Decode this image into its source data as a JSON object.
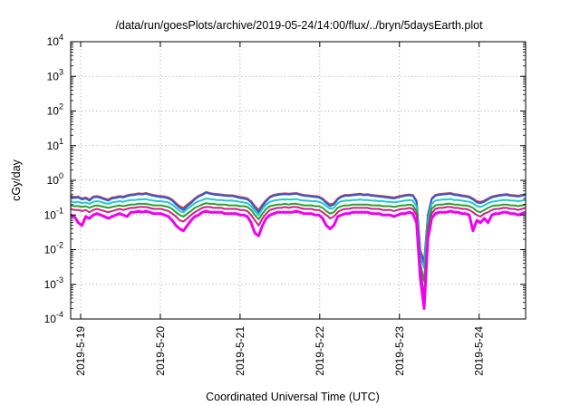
{
  "chart_data": {
    "type": "line",
    "title": "/data/run/goesPlots/archive/2019-05-24/14:00/flux/../bryn/5daysEarth.plot",
    "xlabel": "Coordinated Universal Time (UTC)",
    "ylabel": "cGy/day",
    "yscale": "log",
    "ylim": [
      0.0001,
      10000
    ],
    "xlim": [
      "2019-05-18 21:00",
      "2019-05-24 14:00"
    ],
    "grid": true,
    "x_ticks": [
      "2019-5-19",
      "2019-5-20",
      "2019-5-21",
      "2019-5-22",
      "2019-5-23",
      "2019-5-24"
    ],
    "y_ticks": [
      {
        "value": 0.0001,
        "base": "10",
        "exp": "-4"
      },
      {
        "value": 0.001,
        "base": "10",
        "exp": "-3"
      },
      {
        "value": 0.01,
        "base": "10",
        "exp": "-2"
      },
      {
        "value": 0.1,
        "base": "10",
        "exp": "-1"
      },
      {
        "value": 1,
        "base": "10",
        "exp": "0"
      },
      {
        "value": 10,
        "base": "10",
        "exp": "1"
      },
      {
        "value": 100,
        "base": "10",
        "exp": "2"
      },
      {
        "value": 1000,
        "base": "10",
        "exp": "3"
      },
      {
        "value": 10000,
        "base": "10",
        "exp": "4"
      }
    ],
    "series": [
      {
        "color": "#e8322f",
        "values": [
          0.36,
          0.33,
          0.34,
          0.3,
          0.32,
          0.28,
          0.34,
          0.35,
          0.33,
          0.3,
          0.28,
          0.32,
          0.33,
          0.35,
          0.34,
          0.37,
          0.39,
          0.4,
          0.42,
          0.41,
          0.43,
          0.4,
          0.38,
          0.36,
          0.35,
          0.34,
          0.32,
          0.28,
          0.22,
          0.18,
          0.16,
          0.2,
          0.24,
          0.3,
          0.36,
          0.4,
          0.46,
          0.43,
          0.41,
          0.4,
          0.39,
          0.38,
          0.37,
          0.37,
          0.35,
          0.33,
          0.32,
          0.3,
          0.25,
          0.18,
          0.14,
          0.2,
          0.27,
          0.34,
          0.38,
          0.4,
          0.41,
          0.42,
          0.41,
          0.42,
          0.43,
          0.4,
          0.38,
          0.37,
          0.36,
          0.35,
          0.34,
          0.3,
          0.24,
          0.2,
          0.22,
          0.3,
          0.35,
          0.38,
          0.38,
          0.39,
          0.4,
          0.41,
          0.39,
          0.4,
          0.38,
          0.37,
          0.36,
          0.35,
          0.34,
          0.33,
          0.32,
          0.34,
          0.36,
          0.38,
          0.39,
          0.38,
          0.26,
          0.01,
          0.0045,
          0.1,
          0.3,
          0.38,
          0.4,
          0.41,
          0.42,
          0.43,
          0.4,
          0.39,
          0.37,
          0.36,
          0.34,
          0.3,
          0.25,
          0.24,
          0.26,
          0.3,
          0.34,
          0.36,
          0.38,
          0.39,
          0.4,
          0.38,
          0.37,
          0.36,
          0.38,
          0.4
        ]
      },
      {
        "color": "#2060e0",
        "values": [
          0.34,
          0.31,
          0.32,
          0.28,
          0.3,
          0.26,
          0.32,
          0.33,
          0.31,
          0.28,
          0.26,
          0.3,
          0.31,
          0.33,
          0.32,
          0.35,
          0.37,
          0.38,
          0.4,
          0.39,
          0.41,
          0.38,
          0.36,
          0.34,
          0.33,
          0.32,
          0.3,
          0.26,
          0.2,
          0.16,
          0.14,
          0.18,
          0.22,
          0.28,
          0.34,
          0.38,
          0.44,
          0.41,
          0.39,
          0.38,
          0.37,
          0.36,
          0.35,
          0.35,
          0.33,
          0.31,
          0.3,
          0.28,
          0.23,
          0.16,
          0.12,
          0.18,
          0.25,
          0.32,
          0.36,
          0.38,
          0.39,
          0.4,
          0.39,
          0.4,
          0.41,
          0.38,
          0.36,
          0.35,
          0.34,
          0.33,
          0.32,
          0.28,
          0.22,
          0.18,
          0.2,
          0.28,
          0.33,
          0.36,
          0.36,
          0.37,
          0.38,
          0.39,
          0.37,
          0.38,
          0.36,
          0.35,
          0.34,
          0.33,
          0.32,
          0.31,
          0.3,
          0.32,
          0.34,
          0.36,
          0.37,
          0.36,
          0.24,
          0.009,
          0.004,
          0.09,
          0.28,
          0.36,
          0.38,
          0.39,
          0.4,
          0.41,
          0.38,
          0.37,
          0.35,
          0.34,
          0.32,
          0.28,
          0.23,
          0.22,
          0.24,
          0.28,
          0.32,
          0.34,
          0.36,
          0.37,
          0.38,
          0.36,
          0.35,
          0.34,
          0.36,
          0.38
        ]
      },
      {
        "color": "#1fc8c8",
        "values": [
          0.25,
          0.23,
          0.24,
          0.22,
          0.23,
          0.21,
          0.24,
          0.25,
          0.24,
          0.22,
          0.21,
          0.23,
          0.24,
          0.25,
          0.24,
          0.26,
          0.27,
          0.27,
          0.28,
          0.28,
          0.29,
          0.27,
          0.26,
          0.25,
          0.25,
          0.24,
          0.23,
          0.2,
          0.16,
          0.13,
          0.12,
          0.15,
          0.18,
          0.22,
          0.25,
          0.27,
          0.3,
          0.29,
          0.28,
          0.27,
          0.27,
          0.26,
          0.26,
          0.26,
          0.25,
          0.24,
          0.23,
          0.22,
          0.18,
          0.13,
          0.1,
          0.15,
          0.2,
          0.24,
          0.26,
          0.27,
          0.28,
          0.28,
          0.28,
          0.28,
          0.29,
          0.27,
          0.26,
          0.26,
          0.25,
          0.25,
          0.24,
          0.22,
          0.18,
          0.15,
          0.16,
          0.22,
          0.25,
          0.26,
          0.26,
          0.27,
          0.27,
          0.28,
          0.27,
          0.27,
          0.26,
          0.26,
          0.25,
          0.25,
          0.24,
          0.24,
          0.23,
          0.24,
          0.25,
          0.26,
          0.27,
          0.26,
          0.18,
          0.006,
          0.003,
          0.07,
          0.21,
          0.26,
          0.27,
          0.28,
          0.28,
          0.29,
          0.27,
          0.27,
          0.26,
          0.25,
          0.24,
          0.22,
          0.18,
          0.17,
          0.19,
          0.22,
          0.24,
          0.25,
          0.26,
          0.27,
          0.27,
          0.26,
          0.26,
          0.25,
          0.26,
          0.27
        ]
      },
      {
        "color": "#2aa02a",
        "values": [
          0.19,
          0.18,
          0.18,
          0.17,
          0.18,
          0.16,
          0.18,
          0.19,
          0.18,
          0.17,
          0.16,
          0.17,
          0.18,
          0.19,
          0.18,
          0.19,
          0.2,
          0.2,
          0.21,
          0.21,
          0.21,
          0.2,
          0.19,
          0.19,
          0.19,
          0.18,
          0.17,
          0.15,
          0.12,
          0.1,
          0.09,
          0.11,
          0.13,
          0.16,
          0.18,
          0.2,
          0.22,
          0.21,
          0.21,
          0.2,
          0.2,
          0.2,
          0.19,
          0.19,
          0.19,
          0.18,
          0.18,
          0.17,
          0.14,
          0.1,
          0.075,
          0.11,
          0.15,
          0.18,
          0.19,
          0.2,
          0.2,
          0.21,
          0.2,
          0.21,
          0.21,
          0.2,
          0.19,
          0.19,
          0.19,
          0.18,
          0.18,
          0.16,
          0.13,
          0.11,
          0.12,
          0.16,
          0.18,
          0.19,
          0.19,
          0.2,
          0.2,
          0.2,
          0.2,
          0.2,
          0.19,
          0.19,
          0.19,
          0.18,
          0.18,
          0.18,
          0.17,
          0.18,
          0.19,
          0.19,
          0.2,
          0.19,
          0.13,
          0.004,
          0.0012,
          0.05,
          0.15,
          0.19,
          0.2,
          0.2,
          0.21,
          0.21,
          0.2,
          0.2,
          0.19,
          0.19,
          0.18,
          0.16,
          0.13,
          0.12,
          0.14,
          0.16,
          0.18,
          0.19,
          0.19,
          0.2,
          0.2,
          0.19,
          0.19,
          0.18,
          0.19,
          0.2
        ]
      },
      {
        "color": "#cc1f8a",
        "values": [
          0.15,
          0.14,
          0.14,
          0.13,
          0.14,
          0.12,
          0.14,
          0.15,
          0.14,
          0.13,
          0.12,
          0.13,
          0.14,
          0.15,
          0.14,
          0.15,
          0.16,
          0.16,
          0.17,
          0.17,
          0.17,
          0.16,
          0.15,
          0.15,
          0.15,
          0.14,
          0.13,
          0.11,
          0.09,
          0.07,
          0.065,
          0.08,
          0.1,
          0.12,
          0.14,
          0.16,
          0.17,
          0.17,
          0.16,
          0.16,
          0.16,
          0.15,
          0.15,
          0.15,
          0.15,
          0.14,
          0.14,
          0.13,
          0.1,
          0.07,
          0.05,
          0.08,
          0.11,
          0.14,
          0.15,
          0.16,
          0.16,
          0.17,
          0.16,
          0.17,
          0.17,
          0.16,
          0.15,
          0.15,
          0.15,
          0.14,
          0.14,
          0.12,
          0.1,
          0.08,
          0.09,
          0.12,
          0.14,
          0.15,
          0.15,
          0.16,
          0.16,
          0.16,
          0.16,
          0.16,
          0.15,
          0.15,
          0.15,
          0.14,
          0.14,
          0.14,
          0.13,
          0.14,
          0.15,
          0.15,
          0.16,
          0.15,
          0.1,
          0.003,
          0.0004,
          0.03,
          0.11,
          0.15,
          0.16,
          0.16,
          0.17,
          0.17,
          0.16,
          0.16,
          0.15,
          0.15,
          0.14,
          0.12,
          0.1,
          0.09,
          0.11,
          0.12,
          0.14,
          0.15,
          0.15,
          0.16,
          0.16,
          0.15,
          0.15,
          0.14,
          0.15,
          0.16
        ]
      },
      {
        "color": "#f000f0",
        "values": [
          0.1,
          0.09,
          0.06,
          0.05,
          0.09,
          0.08,
          0.1,
          0.11,
          0.1,
          0.09,
          0.08,
          0.09,
          0.1,
          0.11,
          0.1,
          0.09,
          0.12,
          0.12,
          0.13,
          0.12,
          0.13,
          0.12,
          0.11,
          0.11,
          0.11,
          0.1,
          0.09,
          0.07,
          0.05,
          0.04,
          0.035,
          0.05,
          0.07,
          0.09,
          0.1,
          0.12,
          0.13,
          0.12,
          0.12,
          0.12,
          0.12,
          0.11,
          0.11,
          0.11,
          0.11,
          0.1,
          0.1,
          0.09,
          0.06,
          0.03,
          0.025,
          0.05,
          0.08,
          0.1,
          0.11,
          0.12,
          0.12,
          0.12,
          0.12,
          0.12,
          0.13,
          0.12,
          0.11,
          0.11,
          0.11,
          0.1,
          0.1,
          0.08,
          0.05,
          0.04,
          0.05,
          0.09,
          0.1,
          0.11,
          0.11,
          0.12,
          0.12,
          0.12,
          0.12,
          0.12,
          0.11,
          0.11,
          0.11,
          0.1,
          0.1,
          0.1,
          0.09,
          0.1,
          0.11,
          0.11,
          0.12,
          0.11,
          0.06,
          0.0015,
          0.0002,
          0.02,
          0.08,
          0.11,
          0.12,
          0.12,
          0.12,
          0.13,
          0.12,
          0.12,
          0.11,
          0.11,
          0.1,
          0.035,
          0.07,
          0.06,
          0.08,
          0.06,
          0.1,
          0.11,
          0.11,
          0.12,
          0.12,
          0.11,
          0.11,
          0.1,
          0.11,
          0.12
        ]
      }
    ]
  }
}
